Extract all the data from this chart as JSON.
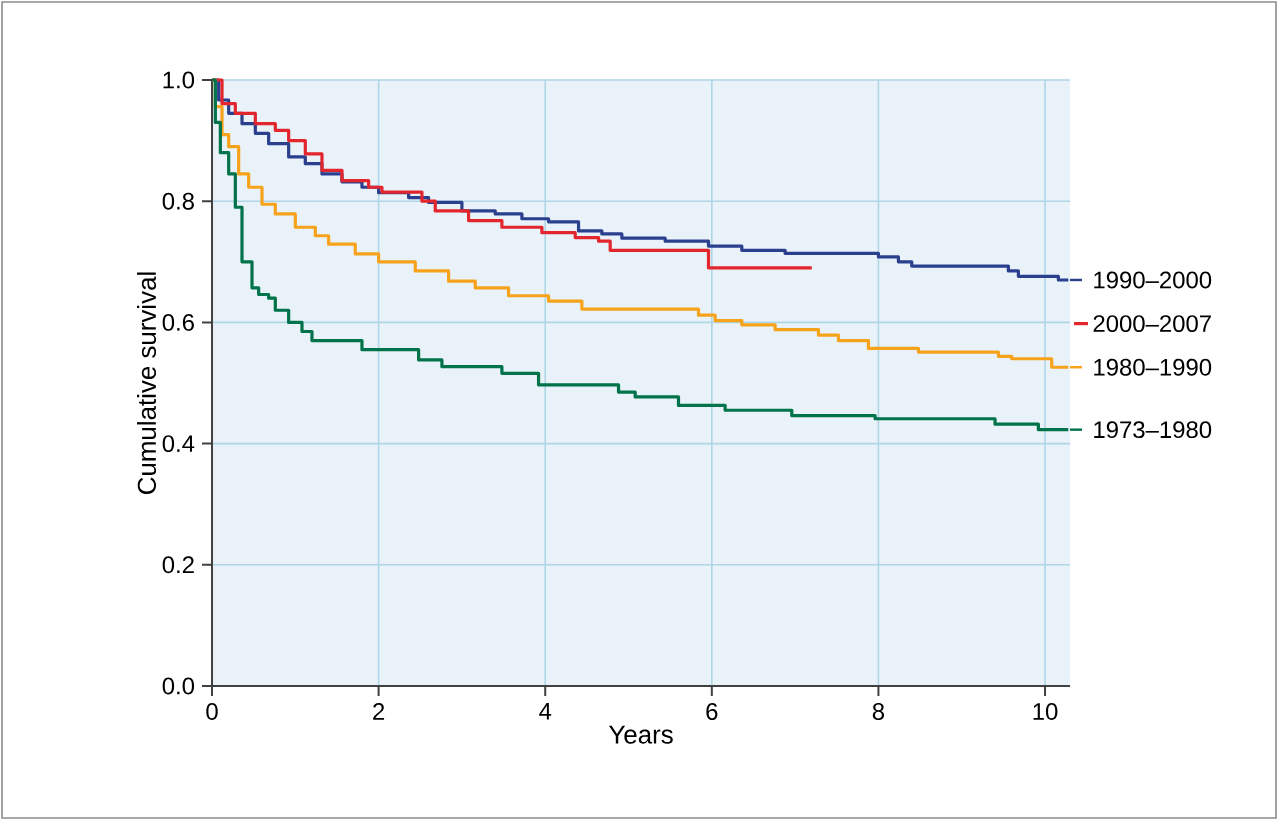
{
  "chart_data": {
    "type": "step",
    "xlabel": "Years",
    "ylabel": "Cumulative survival",
    "xlim": [
      0,
      10.3
    ],
    "ylim": [
      0,
      1
    ],
    "xticks": [
      0,
      2,
      4,
      6,
      8,
      10
    ],
    "yticks": [
      {
        "value": 0,
        "label": "0.0"
      },
      {
        "value": 0.2,
        "label": "0.2"
      },
      {
        "value": 0.4,
        "label": "0.4"
      },
      {
        "value": 0.6,
        "label": "0.6"
      },
      {
        "value": 0.8,
        "label": "0.8"
      },
      {
        "value": 1,
        "label": "1.0"
      }
    ],
    "grid": true,
    "legend": "right",
    "marker": "none",
    "line_style": "solid",
    "series": [
      {
        "name": "1990–2000",
        "color": "#2b3f8f",
        "x": [
          0,
          0.08,
          0.2,
          0.36,
          0.52,
          0.68,
          0.92,
          1.12,
          1.32,
          1.56,
          1.8,
          2.0,
          2.36,
          2.6,
          3.0,
          3.4,
          3.72,
          4.04,
          4.4,
          4.68,
          4.92,
          5.44,
          5.96,
          6.36,
          6.88,
          8.0,
          8.24,
          8.4,
          9.56,
          9.68,
          10.16,
          10.28
        ],
        "values": [
          1,
          0.967,
          0.945,
          0.928,
          0.912,
          0.895,
          0.873,
          0.862,
          0.845,
          0.832,
          0.823,
          0.814,
          0.806,
          0.798,
          0.784,
          0.779,
          0.771,
          0.766,
          0.751,
          0.746,
          0.739,
          0.734,
          0.726,
          0.719,
          0.714,
          0.708,
          0.7,
          0.693,
          0.685,
          0.676,
          0.67,
          0.67
        ]
      },
      {
        "name": "2000–2007",
        "color": "#e3262d",
        "x": [
          0,
          0.12,
          0.28,
          0.52,
          0.76,
          0.92,
          1.12,
          1.32,
          1.56,
          1.88,
          2.04,
          2.52,
          2.68,
          3.08,
          3.48,
          3.96,
          4.36,
          4.64,
          4.78,
          5.96,
          7.2
        ],
        "values": [
          1,
          0.961,
          0.945,
          0.928,
          0.917,
          0.9,
          0.878,
          0.851,
          0.834,
          0.823,
          0.815,
          0.8,
          0.784,
          0.768,
          0.757,
          0.748,
          0.74,
          0.734,
          0.719,
          0.69,
          0.69
        ]
      },
      {
        "name": "1980–1990",
        "color": "#f7a21b",
        "x": [
          0,
          0.04,
          0.12,
          0.2,
          0.32,
          0.44,
          0.6,
          0.76,
          1.0,
          1.24,
          1.4,
          1.72,
          2.0,
          2.44,
          2.84,
          3.16,
          3.56,
          4.04,
          4.44,
          5.84,
          6.04,
          6.36,
          6.76,
          7.28,
          7.52,
          7.88,
          8.48,
          9.44,
          9.6,
          10.08,
          10.28
        ],
        "values": [
          1,
          0.956,
          0.91,
          0.89,
          0.845,
          0.823,
          0.795,
          0.779,
          0.757,
          0.743,
          0.729,
          0.713,
          0.7,
          0.685,
          0.668,
          0.657,
          0.644,
          0.635,
          0.622,
          0.612,
          0.603,
          0.596,
          0.588,
          0.579,
          0.57,
          0.557,
          0.551,
          0.544,
          0.54,
          0.526,
          0.526
        ]
      },
      {
        "name": "1973–1980",
        "color": "#00734a",
        "x": [
          0,
          0.04,
          0.1,
          0.2,
          0.28,
          0.36,
          0.48,
          0.56,
          0.68,
          0.76,
          0.92,
          1.08,
          1.2,
          1.8,
          2.48,
          2.76,
          3.48,
          3.92,
          4.88,
          5.08,
          5.6,
          6.16,
          6.96,
          7.96,
          9.4,
          9.92,
          10.28
        ],
        "values": [
          1,
          0.93,
          0.88,
          0.845,
          0.79,
          0.7,
          0.657,
          0.646,
          0.64,
          0.62,
          0.6,
          0.585,
          0.57,
          0.555,
          0.538,
          0.527,
          0.516,
          0.497,
          0.485,
          0.477,
          0.463,
          0.455,
          0.446,
          0.441,
          0.432,
          0.423,
          0.423
        ]
      }
    ]
  }
}
